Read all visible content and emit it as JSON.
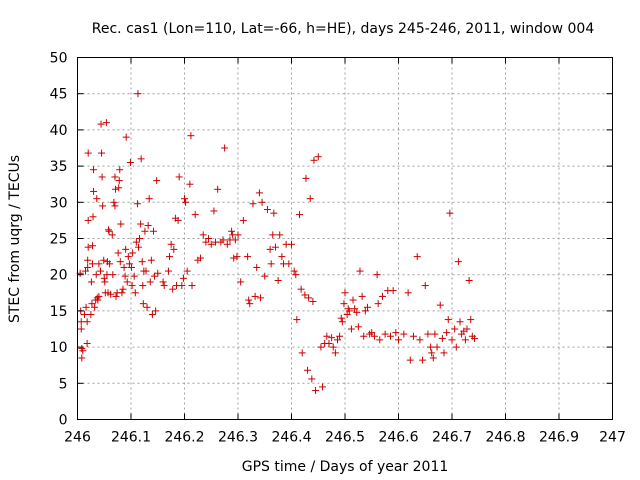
{
  "chart_data": {
    "type": "scatter",
    "title": "Rec. cas1 (Lon=110, Lat=-66, h=HE), days 245-246, 2011, window 004",
    "xlabel": "GPS time / Days of year 2011",
    "ylabel": "STEC from uqrg / TECUs",
    "xlim": [
      246,
      247
    ],
    "ylim": [
      0,
      50
    ],
    "xticks": [
      "246",
      "246.1",
      "246.2",
      "246.3",
      "246.4",
      "246.5",
      "246.6",
      "246.7",
      "246.8",
      "246.9",
      "247"
    ],
    "yticks": [
      "0",
      "5",
      "10",
      "15",
      "20",
      "25",
      "30",
      "35",
      "40",
      "45",
      "50"
    ],
    "grid": true,
    "legend": "none",
    "marker_color": "#cc0000",
    "marker": "plus",
    "series": [
      {
        "points": [
          [
            246.005,
            20.2
          ],
          [
            246.006,
            15.0
          ],
          [
            246.007,
            13.5
          ],
          [
            246.007,
            12.5
          ],
          [
            246.008,
            9.8
          ],
          [
            246.008,
            8.5
          ],
          [
            246.01,
            9.5
          ],
          [
            246.013,
            14.5
          ],
          [
            246.015,
            20.5
          ],
          [
            246.016,
            15.5
          ],
          [
            246.018,
            13.5
          ],
          [
            246.018,
            10.5
          ],
          [
            246.019,
            22.0
          ],
          [
            246.019,
            21.0
          ],
          [
            246.02,
            27.5
          ],
          [
            246.02,
            23.8
          ],
          [
            246.02,
            36.8
          ],
          [
            246.025,
            14.5
          ],
          [
            246.026,
            19.0
          ],
          [
            246.027,
            16.0
          ],
          [
            246.028,
            24.0
          ],
          [
            246.028,
            21.5
          ],
          [
            246.029,
            28.0
          ],
          [
            246.03,
            34.5
          ],
          [
            246.03,
            31.5
          ],
          [
            246.032,
            15.5
          ],
          [
            246.034,
            16.5
          ],
          [
            246.035,
            20.0
          ],
          [
            246.036,
            30.5
          ],
          [
            246.037,
            16.8
          ],
          [
            246.038,
            16.5
          ],
          [
            246.04,
            17.0
          ],
          [
            246.04,
            21.5
          ],
          [
            246.043,
            20.5
          ],
          [
            246.044,
            40.8
          ],
          [
            246.045,
            36.8
          ],
          [
            246.046,
            33.5
          ],
          [
            246.047,
            29.5
          ],
          [
            246.049,
            22.0
          ],
          [
            246.05,
            19.5
          ],
          [
            246.051,
            19.0
          ],
          [
            246.052,
            17.5
          ],
          [
            246.054,
            41.0
          ],
          [
            246.055,
            20.0
          ],
          [
            246.056,
            21.8
          ],
          [
            246.057,
            17.5
          ],
          [
            246.058,
            26.2
          ],
          [
            246.059,
            26.0
          ],
          [
            246.06,
            21.5
          ],
          [
            246.062,
            17.3
          ],
          [
            246.065,
            25.5
          ],
          [
            246.066,
            20.0
          ],
          [
            246.068,
            30.0
          ],
          [
            246.07,
            33.5
          ],
          [
            246.07,
            29.5
          ],
          [
            246.071,
            31.8
          ],
          [
            246.072,
            17.0
          ],
          [
            246.074,
            17.5
          ],
          [
            246.076,
            23.0
          ],
          [
            246.077,
            32.0
          ],
          [
            246.078,
            33.0
          ],
          [
            246.079,
            34.5
          ],
          [
            246.08,
            21.8
          ],
          [
            246.081,
            27.0
          ],
          [
            246.083,
            17.5
          ],
          [
            246.085,
            18.0
          ],
          [
            246.087,
            21.0
          ],
          [
            246.089,
            19.8
          ],
          [
            246.09,
            23.5
          ],
          [
            246.091,
            39.0
          ],
          [
            246.093,
            19.0
          ],
          [
            246.095,
            22.5
          ],
          [
            246.097,
            21.5
          ],
          [
            246.099,
            35.5
          ],
          [
            246.101,
            21.0
          ],
          [
            246.102,
            18.5
          ],
          [
            246.103,
            23.0
          ],
          [
            246.106,
            19.8
          ],
          [
            246.108,
            17.5
          ],
          [
            246.11,
            24.5
          ],
          [
            246.112,
            29.8
          ],
          [
            246.113,
            45.0
          ],
          [
            246.114,
            23.8
          ],
          [
            246.116,
            25.0
          ],
          [
            246.118,
            27.0
          ],
          [
            246.119,
            36.0
          ],
          [
            246.121,
            21.8
          ],
          [
            246.122,
            18.5
          ],
          [
            246.123,
            16.0
          ],
          [
            246.124,
            20.5
          ],
          [
            246.126,
            26.0
          ],
          [
            246.128,
            20.5
          ],
          [
            246.13,
            15.5
          ],
          [
            246.132,
            26.8
          ],
          [
            246.134,
            30.5
          ],
          [
            246.136,
            19.0
          ],
          [
            246.138,
            22.0
          ],
          [
            246.14,
            14.5
          ],
          [
            246.142,
            26.0
          ],
          [
            246.144,
            19.8
          ],
          [
            246.146,
            15.0
          ],
          [
            246.148,
            33.0
          ],
          [
            246.15,
            20.2
          ],
          [
            246.16,
            19.0
          ],
          [
            246.162,
            18.5
          ],
          [
            246.17,
            20.5
          ],
          [
            246.172,
            22.5
          ],
          [
            246.175,
            24.2
          ],
          [
            246.178,
            18.0
          ],
          [
            246.18,
            23.5
          ],
          [
            246.183,
            27.8
          ],
          [
            246.185,
            18.5
          ],
          [
            246.188,
            27.5
          ],
          [
            246.19,
            33.5
          ],
          [
            246.195,
            18.5
          ],
          [
            246.198,
            19.5
          ],
          [
            246.2,
            30.5
          ],
          [
            246.202,
            30.0
          ],
          [
            246.205,
            20.5
          ],
          [
            246.21,
            32.5
          ],
          [
            246.212,
            39.2
          ],
          [
            246.214,
            18.5
          ],
          [
            246.22,
            28.3
          ],
          [
            246.225,
            22.0
          ],
          [
            246.23,
            22.3
          ],
          [
            246.235,
            25.5
          ],
          [
            246.24,
            24.5
          ],
          [
            246.245,
            25.0
          ],
          [
            246.25,
            24.2
          ],
          [
            246.255,
            28.8
          ],
          [
            246.258,
            24.5
          ],
          [
            246.262,
            31.8
          ],
          [
            246.268,
            24.5
          ],
          [
            246.272,
            24.8
          ],
          [
            246.275,
            37.5
          ],
          [
            246.28,
            24.2
          ],
          [
            246.285,
            24.8
          ],
          [
            246.288,
            26.0
          ],
          [
            246.29,
            25.5
          ],
          [
            246.292,
            22.3
          ],
          [
            246.295,
            24.8
          ],
          [
            246.298,
            22.5
          ],
          [
            246.3,
            25.5
          ],
          [
            246.305,
            19.0
          ],
          [
            246.31,
            27.5
          ],
          [
            246.318,
            22.5
          ],
          [
            246.32,
            16.5
          ],
          [
            246.322,
            16.0
          ],
          [
            246.328,
            29.8
          ],
          [
            246.332,
            17.0
          ],
          [
            246.335,
            21.0
          ],
          [
            246.34,
            31.3
          ],
          [
            246.342,
            16.8
          ],
          [
            246.345,
            30.0
          ],
          [
            246.35,
            19.8
          ],
          [
            246.355,
            29.0
          ],
          [
            246.36,
            23.5
          ],
          [
            246.362,
            21.5
          ],
          [
            246.365,
            25.5
          ],
          [
            246.367,
            28.5
          ],
          [
            246.37,
            23.8
          ],
          [
            246.375,
            19.2
          ],
          [
            246.378,
            25.5
          ],
          [
            246.382,
            22.5
          ],
          [
            246.385,
            21.5
          ],
          [
            246.39,
            24.2
          ],
          [
            246.395,
            21.5
          ],
          [
            246.4,
            24.2
          ],
          [
            246.405,
            20.5
          ],
          [
            246.408,
            20.0
          ],
          [
            246.41,
            13.8
          ],
          [
            246.415,
            28.3
          ],
          [
            246.418,
            18.0
          ],
          [
            246.42,
            9.2
          ],
          [
            246.425,
            17.2
          ],
          [
            246.427,
            33.3
          ],
          [
            246.43,
            6.8
          ],
          [
            246.432,
            16.8
          ],
          [
            246.435,
            30.5
          ],
          [
            246.438,
            5.6
          ],
          [
            246.44,
            16.3
          ],
          [
            246.442,
            35.8
          ],
          [
            246.445,
            4.0
          ],
          [
            246.45,
            36.3
          ],
          [
            246.455,
            10.0
          ],
          [
            246.458,
            4.5
          ],
          [
            246.462,
            10.5
          ],
          [
            246.466,
            11.5
          ],
          [
            246.47,
            10.5
          ],
          [
            246.475,
            11.3
          ],
          [
            246.478,
            10.0
          ],
          [
            246.482,
            9.2
          ],
          [
            246.486,
            11.0
          ],
          [
            246.49,
            11.5
          ],
          [
            246.493,
            14.0
          ],
          [
            246.495,
            13.5
          ],
          [
            246.498,
            16.0
          ],
          [
            246.5,
            17.5
          ],
          [
            246.504,
            14.5
          ],
          [
            246.506,
            15.3
          ],
          [
            246.508,
            15.0
          ],
          [
            246.512,
            12.5
          ],
          [
            246.515,
            16.5
          ],
          [
            246.518,
            15.3
          ],
          [
            246.522,
            14.8
          ],
          [
            246.525,
            12.8
          ],
          [
            246.528,
            20.5
          ],
          [
            246.532,
            17.0
          ],
          [
            246.535,
            11.5
          ],
          [
            246.538,
            15.0
          ],
          [
            246.542,
            15.5
          ],
          [
            246.546,
            11.8
          ],
          [
            246.55,
            12.0
          ],
          [
            246.555,
            11.5
          ],
          [
            246.56,
            20.0
          ],
          [
            246.562,
            16.0
          ],
          [
            246.565,
            11.0
          ],
          [
            246.57,
            17.0
          ],
          [
            246.575,
            11.8
          ],
          [
            246.58,
            17.8
          ],
          [
            246.585,
            11.5
          ],
          [
            246.59,
            17.8
          ],
          [
            246.595,
            12.0
          ],
          [
            246.6,
            11.0
          ],
          [
            246.61,
            11.8
          ],
          [
            246.618,
            17.5
          ],
          [
            246.622,
            8.2
          ],
          [
            246.628,
            11.5
          ],
          [
            246.635,
            22.5
          ],
          [
            246.64,
            11.0
          ],
          [
            246.645,
            8.2
          ],
          [
            246.65,
            18.5
          ],
          [
            246.655,
            11.8
          ],
          [
            246.66,
            10.0
          ],
          [
            246.662,
            9.2
          ],
          [
            246.665,
            8.5
          ],
          [
            246.668,
            11.8
          ],
          [
            246.672,
            10.0
          ],
          [
            246.678,
            15.8
          ],
          [
            246.682,
            11.2
          ],
          [
            246.685,
            9.2
          ],
          [
            246.69,
            12.0
          ],
          [
            246.693,
            13.8
          ],
          [
            246.696,
            28.5
          ],
          [
            246.7,
            11.0
          ],
          [
            246.705,
            12.5
          ],
          [
            246.708,
            10.0
          ],
          [
            246.712,
            21.8
          ],
          [
            246.715,
            13.5
          ],
          [
            246.718,
            11.8
          ],
          [
            246.722,
            12.2
          ],
          [
            246.725,
            11.0
          ],
          [
            246.728,
            12.5
          ],
          [
            246.732,
            19.2
          ],
          [
            246.735,
            13.8
          ],
          [
            246.738,
            11.5
          ],
          [
            246.742,
            11.2
          ]
        ]
      }
    ]
  }
}
